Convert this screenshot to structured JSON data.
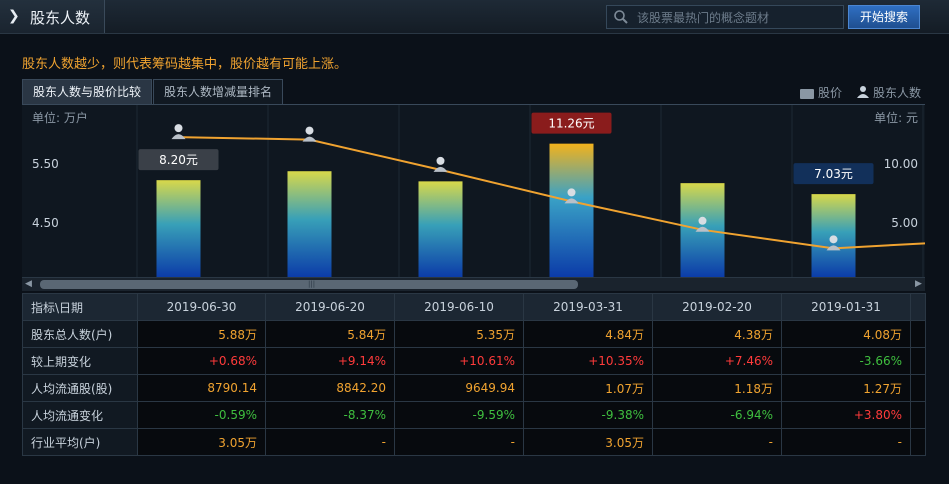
{
  "header": {
    "title": "股东人数",
    "search_placeholder": "该股票最热门的概念题材",
    "search_button": "开始搜索"
  },
  "tagline": "股东人数越少，则代表筹码越集中，股价越有可能上涨。",
  "tabs": [
    {
      "label": "股东人数与股价比较",
      "active": true
    },
    {
      "label": "股东人数增减量排名",
      "active": false
    }
  ],
  "legend": {
    "price": "股价",
    "holders": "股东人数"
  },
  "chart_data": {
    "type": "bar",
    "left_axis_label": "单位: 万户",
    "right_axis_label": "单位: 元",
    "left_ticks": [
      "5.50",
      "4.50"
    ],
    "right_ticks": [
      "10.00",
      "5.00"
    ],
    "categories": [
      "2019-06-30",
      "2019-06-20",
      "2019-06-10",
      "2019-03-31",
      "2019-02-20",
      "2019-01-31"
    ],
    "bar_series": {
      "name": "股价",
      "values": [
        8.2,
        8.95,
        8.1,
        11.26,
        7.95,
        7.03
      ]
    },
    "line_series": {
      "name": "股东人数",
      "values": [
        5.88,
        5.84,
        5.35,
        4.84,
        4.38,
        4.08
      ]
    },
    "price_labels": [
      {
        "index": 0,
        "text": "8.20元",
        "style": "gray"
      },
      {
        "index": 3,
        "text": "11.26元",
        "style": "red"
      },
      {
        "index": 5,
        "text": "7.03元",
        "style": "blue"
      }
    ],
    "holder_axis_range": [
      3.6,
      6.4
    ],
    "price_axis_range": [
      0,
      14.5
    ]
  },
  "table": {
    "header_first": "指标\\日期",
    "dates": [
      "2019-06-30",
      "2019-06-20",
      "2019-06-10",
      "2019-03-31",
      "2019-02-20",
      "2019-01-31"
    ],
    "rows": [
      {
        "label": "股东总人数(户)",
        "cells": [
          {
            "v": "5.88万",
            "c": "orange"
          },
          {
            "v": "5.84万",
            "c": "orange"
          },
          {
            "v": "5.35万",
            "c": "orange"
          },
          {
            "v": "4.84万",
            "c": "orange"
          },
          {
            "v": "4.38万",
            "c": "orange"
          },
          {
            "v": "4.08万",
            "c": "orange"
          }
        ]
      },
      {
        "label": "较上期变化",
        "cells": [
          {
            "v": "+0.68%",
            "c": "red"
          },
          {
            "v": "+9.14%",
            "c": "red"
          },
          {
            "v": "+10.61%",
            "c": "red"
          },
          {
            "v": "+10.35%",
            "c": "red"
          },
          {
            "v": "+7.46%",
            "c": "red"
          },
          {
            "v": "-3.66%",
            "c": "green"
          }
        ]
      },
      {
        "label": "人均流通股(股)",
        "cells": [
          {
            "v": "8790.14",
            "c": "orange"
          },
          {
            "v": "8842.20",
            "c": "orange"
          },
          {
            "v": "9649.94",
            "c": "orange"
          },
          {
            "v": "1.07万",
            "c": "orange"
          },
          {
            "v": "1.18万",
            "c": "orange"
          },
          {
            "v": "1.27万",
            "c": "orange"
          }
        ]
      },
      {
        "label": "人均流通变化",
        "cells": [
          {
            "v": "-0.59%",
            "c": "green"
          },
          {
            "v": "-8.37%",
            "c": "green"
          },
          {
            "v": "-9.59%",
            "c": "green"
          },
          {
            "v": "-9.38%",
            "c": "green"
          },
          {
            "v": "-6.94%",
            "c": "green"
          },
          {
            "v": "+3.80%",
            "c": "red"
          }
        ]
      },
      {
        "label": "行业平均(户)",
        "cells": [
          {
            "v": "3.05万",
            "c": "orange"
          },
          {
            "v": "-",
            "c": "orange"
          },
          {
            "v": "-",
            "c": "orange"
          },
          {
            "v": "3.05万",
            "c": "orange"
          },
          {
            "v": "-",
            "c": "orange"
          },
          {
            "v": "-",
            "c": "orange"
          }
        ]
      }
    ]
  },
  "colors": {
    "accent_orange": "#f0a330",
    "up_red": "#ff3b3b",
    "down_green": "#3fbf3f",
    "line": "#f0a330"
  }
}
